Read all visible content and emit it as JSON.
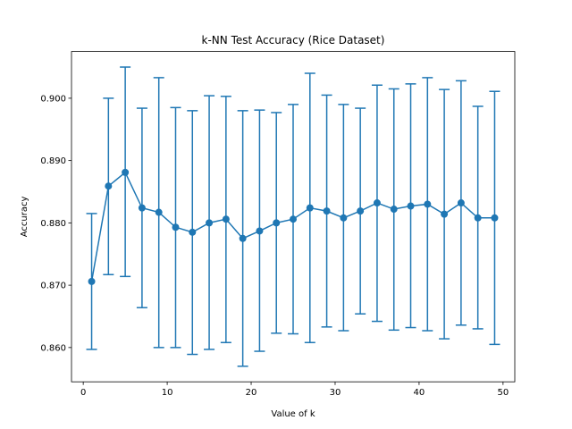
{
  "chart_data": {
    "type": "line",
    "title": "k-NN Test Accuracy (Rice Dataset)",
    "xlabel": "Value of k",
    "ylabel": "Accuracy",
    "xlim": [
      -1.4,
      51.4
    ],
    "ylim": [
      0.8545,
      0.9075
    ],
    "x_ticks": [
      0,
      10,
      20,
      30,
      40,
      50
    ],
    "y_ticks": [
      0.86,
      0.87,
      0.88,
      0.89,
      0.9
    ],
    "x_tick_labels": [
      "0",
      "10",
      "20",
      "30",
      "40",
      "50"
    ],
    "y_tick_labels": [
      "0.860",
      "0.870",
      "0.880",
      "0.890",
      "0.900"
    ],
    "grid": false,
    "color": "#1f77b4",
    "series": [
      {
        "x": [
          1,
          3,
          5,
          7,
          9,
          11,
          13,
          15,
          17,
          19,
          21,
          23,
          25,
          27,
          29,
          31,
          33,
          35,
          37,
          39,
          41,
          43,
          45,
          47,
          49
        ],
        "values": [
          0.8706,
          0.8859,
          0.8881,
          0.8824,
          0.8817,
          0.8793,
          0.8785,
          0.88,
          0.8806,
          0.8775,
          0.8787,
          0.88,
          0.8806,
          0.8824,
          0.8819,
          0.8808,
          0.8819,
          0.8832,
          0.8822,
          0.8827,
          0.883,
          0.8814,
          0.8832,
          0.8808,
          0.8808
        ],
        "err_low": [
          0.8597,
          0.8717,
          0.8714,
          0.8664,
          0.86,
          0.86,
          0.8589,
          0.8597,
          0.8608,
          0.857,
          0.8594,
          0.8623,
          0.8622,
          0.8608,
          0.8633,
          0.8627,
          0.8654,
          0.8642,
          0.8628,
          0.8632,
          0.8627,
          0.8614,
          0.8636,
          0.863,
          0.8605
        ],
        "err_high": [
          0.8815,
          0.9,
          0.905,
          0.8984,
          0.9033,
          0.8985,
          0.898,
          0.9004,
          0.9003,
          0.898,
          0.8981,
          0.8977,
          0.899,
          0.904,
          0.9005,
          0.899,
          0.8984,
          0.9021,
          0.9015,
          0.9023,
          0.9033,
          0.9014,
          0.9028,
          0.8987,
          0.9011
        ]
      }
    ]
  }
}
